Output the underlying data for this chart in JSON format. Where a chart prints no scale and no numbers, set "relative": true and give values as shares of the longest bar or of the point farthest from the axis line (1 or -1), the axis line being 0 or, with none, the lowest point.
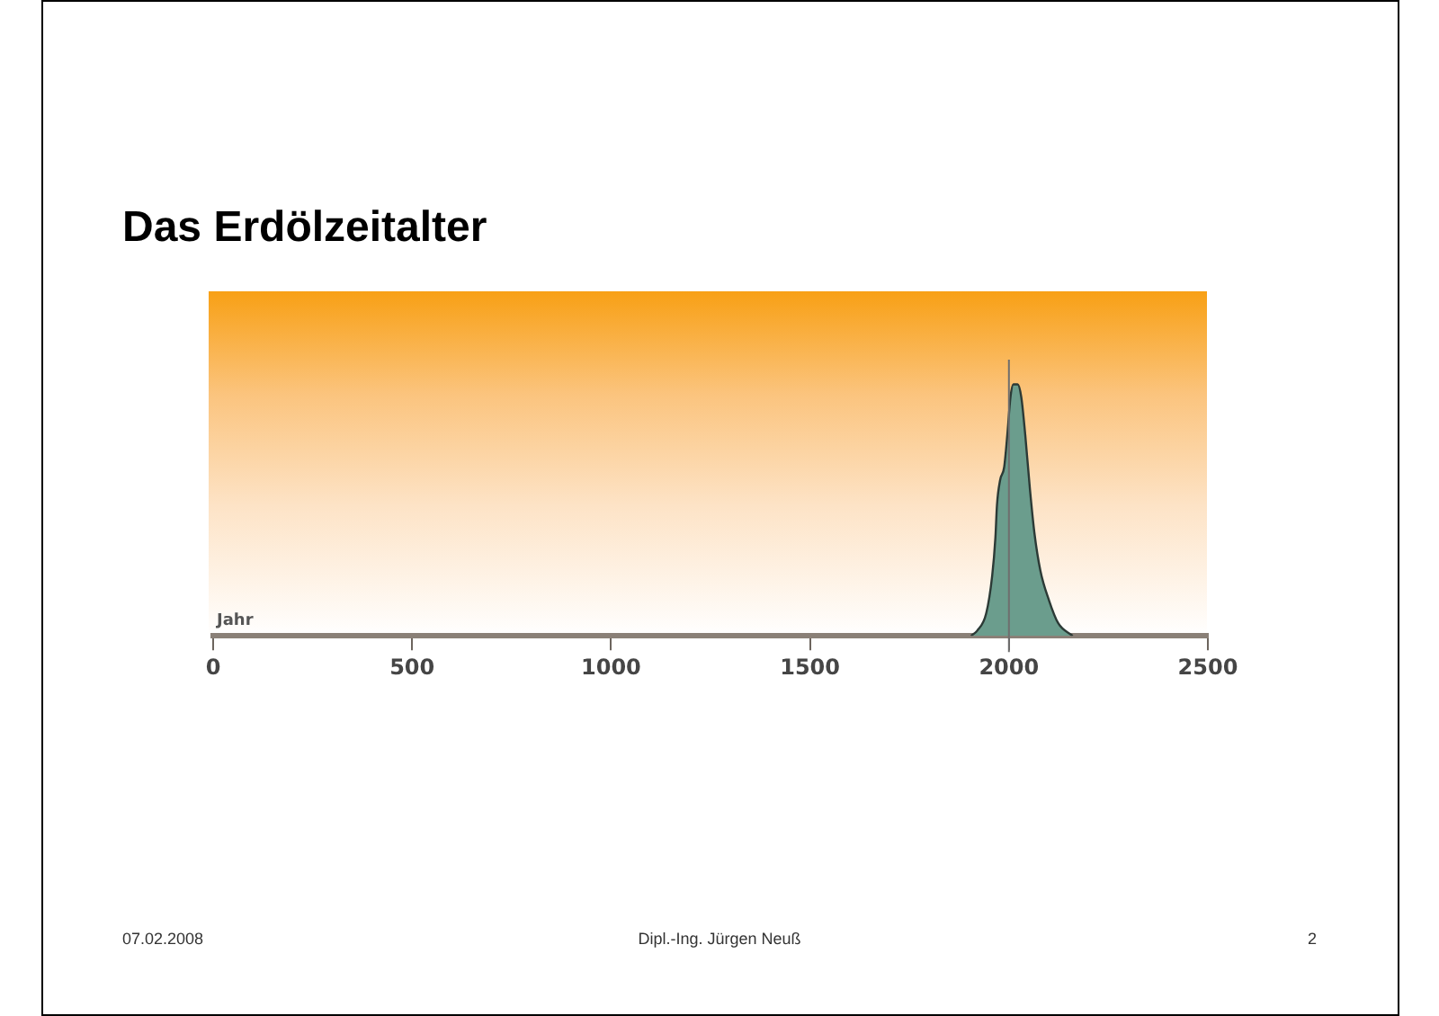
{
  "chart_data": {
    "type": "area",
    "title": "Das Erdölzeitalter",
    "xlabel": "Jahr",
    "x": [
      1905,
      1920,
      1943,
      1958,
      1966,
      1970,
      1978,
      1988,
      1996,
      2004,
      2011,
      2022,
      2031,
      2041,
      2053,
      2064,
      2079,
      2101,
      2124,
      2160
    ],
    "values": [
      0,
      0.02,
      0.09,
      0.24,
      0.39,
      0.52,
      0.62,
      0.67,
      0.8,
      0.95,
      1,
      1,
      0.95,
      0.8,
      0.58,
      0.41,
      0.26,
      0.14,
      0.05,
      0
    ],
    "color": "#6b9d8d",
    "relative": true,
    "xlim": [
      0,
      2500
    ],
    "xticks": [
      0,
      500,
      1000,
      1500,
      2000,
      2500
    ],
    "ref_lines": [
      {
        "axis": "x",
        "value": 2000,
        "color": "#6e6e6e"
      }
    ],
    "annotations": [
      "07.02.2008",
      "Dipl.-Ing. Jürgen Neuß",
      "2"
    ]
  }
}
